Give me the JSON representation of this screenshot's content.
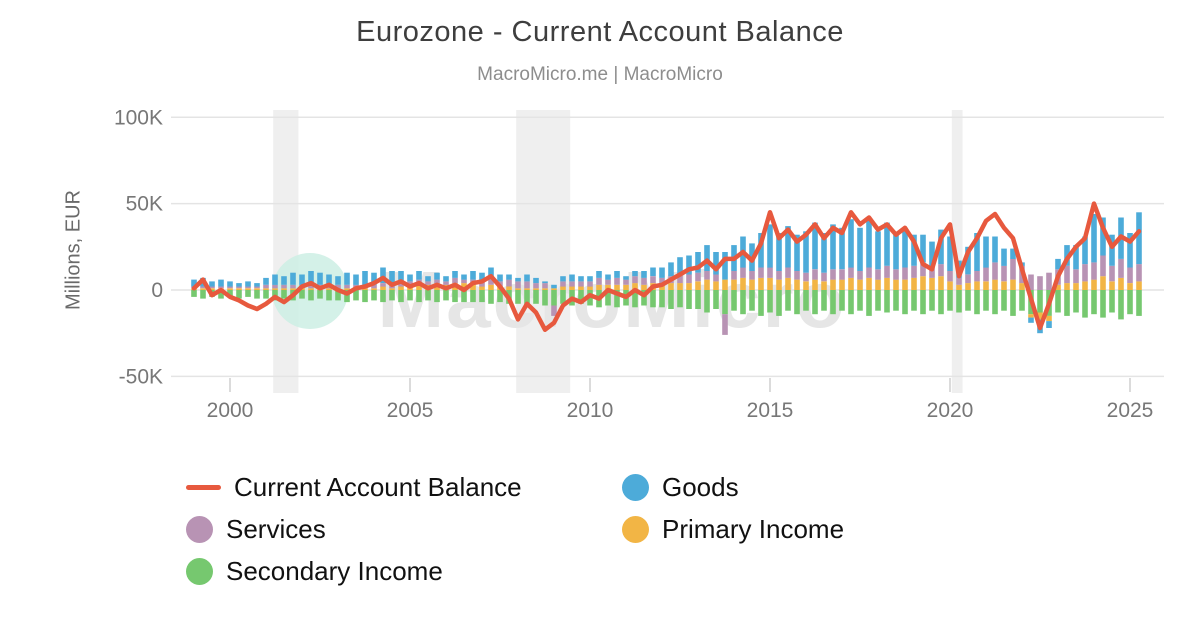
{
  "header": {
    "title": "Eurozone - Current Account Balance",
    "subtitle": "MacroMicro.me | MacroMicro"
  },
  "watermark": {
    "text": "MacroMicro"
  },
  "colors": {
    "line_red": "#e7593e",
    "goods_blue": "#4dabd9",
    "services_purple": "#b893b4",
    "primary_income_yellow": "#f2b545",
    "secondary_income_green": "#76c86f",
    "recession_band": "#efefef",
    "gridline": "#e4e4e4",
    "tick_text": "#777777",
    "watermark_circle": "#cdeee4",
    "watermark_text": "#e6e6e6"
  },
  "chart_data": {
    "type": "bar",
    "stacked": true,
    "line_overlay": true,
    "title": "Eurozone - Current Account Balance",
    "subtitle": "MacroMicro.me | MacroMicro",
    "xlabel": "",
    "ylabel": "Millions, EUR",
    "values_unit": "K (thousands of millions EUR)",
    "grid": true,
    "legend_position": "bottom",
    "ylim": [
      -50,
      100
    ],
    "xlim": [
      1998.4,
      2025.9
    ],
    "yticks": [
      {
        "value": 100,
        "label": "100K"
      },
      {
        "value": 50,
        "label": "50K"
      },
      {
        "value": 0,
        "label": "0"
      },
      {
        "value": -50,
        "label": "-50K"
      }
    ],
    "xticks": [
      {
        "value": 2000,
        "label": "2000"
      },
      {
        "value": 2005,
        "label": "2005"
      },
      {
        "value": 2010,
        "label": "2010"
      },
      {
        "value": 2015,
        "label": "2015"
      },
      {
        "value": 2020,
        "label": "2020"
      },
      {
        "value": 2025,
        "label": "2025"
      }
    ],
    "recession_bands": [
      [
        2001.2,
        2001.9
      ],
      [
        2007.95,
        2009.45
      ],
      [
        2020.05,
        2020.35
      ]
    ],
    "stack_order": [
      "Secondary Income",
      "Primary Income",
      "Services",
      "Goods"
    ],
    "legend_order": [
      "Current Account Balance",
      "Goods",
      "Services",
      "Primary Income",
      "Secondary Income"
    ],
    "x": [
      1999,
      1999.25,
      1999.5,
      1999.75,
      2000,
      2000.25,
      2000.5,
      2000.75,
      2001,
      2001.25,
      2001.5,
      2001.75,
      2002,
      2002.25,
      2002.5,
      2002.75,
      2003,
      2003.25,
      2003.5,
      2003.75,
      2004,
      2004.25,
      2004.5,
      2004.75,
      2005,
      2005.25,
      2005.5,
      2005.75,
      2006,
      2006.25,
      2006.5,
      2006.75,
      2007,
      2007.25,
      2007.5,
      2007.75,
      2008,
      2008.25,
      2008.5,
      2008.75,
      2009,
      2009.25,
      2009.5,
      2009.75,
      2010,
      2010.25,
      2010.5,
      2010.75,
      2011,
      2011.25,
      2011.5,
      2011.75,
      2012,
      2012.25,
      2012.5,
      2012.75,
      2013,
      2013.25,
      2013.5,
      2013.75,
      2014,
      2014.25,
      2014.5,
      2014.75,
      2015,
      2015.25,
      2015.5,
      2015.75,
      2016,
      2016.25,
      2016.5,
      2016.75,
      2017,
      2017.25,
      2017.5,
      2017.75,
      2018,
      2018.25,
      2018.5,
      2018.75,
      2019,
      2019.25,
      2019.5,
      2019.75,
      2020,
      2020.25,
      2020.5,
      2020.75,
      2021,
      2021.25,
      2021.5,
      2021.75,
      2022,
      2022.25,
      2022.5,
      2022.75,
      2023,
      2023.25,
      2023.5,
      2023.75,
      2024,
      2024.25,
      2024.5,
      2024.75,
      2025,
      2025.25
    ],
    "series": [
      {
        "name": "Goods",
        "type": "bar",
        "color": "#4dabd9",
        "values": [
          4,
          5,
          3,
          4,
          3,
          2,
          3,
          2,
          4,
          6,
          5,
          7,
          6,
          8,
          7,
          6,
          5,
          7,
          6,
          8,
          7,
          9,
          8,
          7,
          4,
          5,
          3,
          4,
          3,
          4,
          3,
          5,
          5,
          6,
          4,
          3,
          2,
          4,
          3,
          1,
          2,
          3,
          4,
          3,
          3,
          4,
          3,
          4,
          2,
          3,
          4,
          5,
          6,
          8,
          10,
          11,
          12,
          15,
          13,
          16,
          15,
          18,
          16,
          20,
          25,
          22,
          24,
          21,
          24,
          27,
          23,
          26,
          24,
          28,
          25,
          27,
          22,
          25,
          21,
          23,
          18,
          16,
          15,
          20,
          20,
          10,
          16,
          22,
          18,
          15,
          10,
          6,
          2,
          -3,
          -8,
          -4,
          6,
          12,
          14,
          16,
          28,
          22,
          18,
          24,
          20,
          30
        ]
      },
      {
        "name": "Services",
        "type": "bar",
        "color": "#b893b4",
        "values": [
          1,
          1,
          1,
          1,
          1,
          1,
          1,
          1,
          2,
          2,
          2,
          2,
          2,
          2,
          2,
          2,
          2,
          2,
          2,
          2,
          2,
          2,
          2,
          2,
          2,
          2,
          2,
          2,
          2,
          3,
          2,
          3,
          3,
          4,
          3,
          4,
          4,
          4,
          3,
          3,
          -6,
          3,
          3,
          3,
          3,
          4,
          3,
          4,
          3,
          4,
          4,
          4,
          4,
          4,
          5,
          5,
          5,
          5,
          4,
          -12,
          5,
          6,
          5,
          6,
          6,
          5,
          6,
          5,
          5,
          6,
          5,
          6,
          6,
          6,
          5,
          6,
          6,
          7,
          6,
          7,
          7,
          8,
          6,
          7,
          6,
          4,
          5,
          6,
          8,
          10,
          9,
          12,
          10,
          9,
          8,
          10,
          9,
          10,
          8,
          10,
          10,
          12,
          9,
          11,
          9,
          10
        ]
      },
      {
        "name": "Primary Income",
        "type": "bar",
        "color": "#f2b545",
        "values": [
          1,
          1,
          1,
          1,
          1,
          1,
          1,
          1,
          1,
          1,
          1,
          1,
          1,
          1,
          1,
          1,
          1,
          1,
          1,
          1,
          1,
          2,
          1,
          2,
          3,
          4,
          3,
          4,
          3,
          4,
          4,
          3,
          2,
          3,
          2,
          2,
          1,
          1,
          1,
          1,
          1,
          2,
          2,
          2,
          2,
          3,
          3,
          3,
          3,
          4,
          3,
          4,
          3,
          4,
          4,
          4,
          5,
          6,
          5,
          6,
          6,
          7,
          6,
          7,
          7,
          6,
          7,
          6,
          5,
          6,
          5,
          6,
          6,
          7,
          6,
          7,
          6,
          7,
          6,
          6,
          7,
          8,
          7,
          8,
          5,
          3,
          4,
          5,
          5,
          6,
          5,
          6,
          4,
          -2,
          -4,
          -3,
          3,
          4,
          4,
          5,
          6,
          8,
          5,
          7,
          4,
          5
        ]
      },
      {
        "name": "Secondary Income",
        "type": "bar",
        "color": "#76c86f",
        "values": [
          -4,
          -5,
          -4,
          -5,
          -4,
          -5,
          -4,
          -5,
          -5,
          -6,
          -5,
          -6,
          -5,
          -6,
          -5,
          -6,
          -6,
          -7,
          -6,
          -7,
          -6,
          -7,
          -6,
          -7,
          -6,
          -7,
          -6,
          -7,
          -6,
          -7,
          -7,
          -7,
          -7,
          -8,
          -7,
          -8,
          -8,
          -9,
          -8,
          -9,
          -9,
          -8,
          -9,
          -8,
          -9,
          -10,
          -9,
          -10,
          -9,
          -10,
          -9,
          -10,
          -10,
          -11,
          -10,
          -11,
          -11,
          -13,
          -11,
          -14,
          -12,
          -14,
          -12,
          -15,
          -13,
          -15,
          -12,
          -14,
          -12,
          -14,
          -12,
          -14,
          -12,
          -14,
          -12,
          -15,
          -12,
          -13,
          -12,
          -14,
          -12,
          -14,
          -12,
          -14,
          -12,
          -13,
          -12,
          -14,
          -12,
          -14,
          -12,
          -15,
          -12,
          -14,
          -13,
          -15,
          -13,
          -15,
          -13,
          -16,
          -14,
          -16,
          -13,
          -17,
          -14,
          -15
        ]
      },
      {
        "name": "Current Account Balance",
        "type": "line",
        "color": "#e7593e",
        "values": [
          1,
          6,
          -3,
          0,
          -4,
          -6,
          -9,
          -11,
          -8,
          -4,
          -7,
          -3,
          2,
          4,
          1,
          3,
          0,
          -2,
          1,
          2,
          4,
          7,
          3,
          5,
          2,
          4,
          1,
          3,
          1,
          3,
          0,
          4,
          5,
          8,
          2,
          -5,
          -17,
          -8,
          -13,
          -23,
          -19,
          -9,
          -5,
          -7,
          -3,
          -5,
          0,
          -2,
          -4,
          0,
          -3,
          2,
          3,
          6,
          9,
          12,
          13,
          17,
          12,
          18,
          18,
          22,
          17,
          27,
          45,
          30,
          35,
          28,
          32,
          38,
          30,
          36,
          33,
          45,
          38,
          42,
          35,
          38,
          32,
          36,
          28,
          15,
          12,
          30,
          38,
          8,
          22,
          30,
          40,
          44,
          36,
          30,
          12,
          -5,
          -22,
          -8,
          8,
          18,
          25,
          30,
          50,
          36,
          25,
          31,
          28,
          34
        ]
      }
    ]
  }
}
